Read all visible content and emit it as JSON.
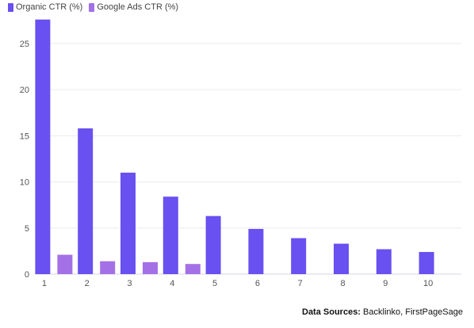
{
  "legend": {
    "items": [
      {
        "label": "Organic CTR (%)",
        "color": "#6950f0"
      },
      {
        "label": "Google Ads CTR (%)",
        "color": "#a470e6"
      }
    ]
  },
  "source": {
    "label": "Data Sources:",
    "text": "Backlinko, FirstPageSage"
  },
  "chart_data": {
    "type": "bar",
    "categories": [
      "1",
      "2",
      "3",
      "4",
      "5",
      "6",
      "7",
      "8",
      "9",
      "10"
    ],
    "series": [
      {
        "name": "Organic CTR (%)",
        "color": "#6950f0",
        "values": [
          27.6,
          15.8,
          11.0,
          8.4,
          6.3,
          4.9,
          3.9,
          3.3,
          2.7,
          2.4
        ]
      },
      {
        "name": "Google Ads CTR (%)",
        "color": "#a470e6",
        "values": [
          2.1,
          1.4,
          1.3,
          1.1,
          null,
          null,
          null,
          null,
          null,
          null
        ]
      }
    ],
    "yticks": [
      0,
      5,
      10,
      15,
      20,
      25
    ],
    "ylim": [
      0,
      28
    ],
    "grid": true,
    "legend_position": "top-left"
  }
}
